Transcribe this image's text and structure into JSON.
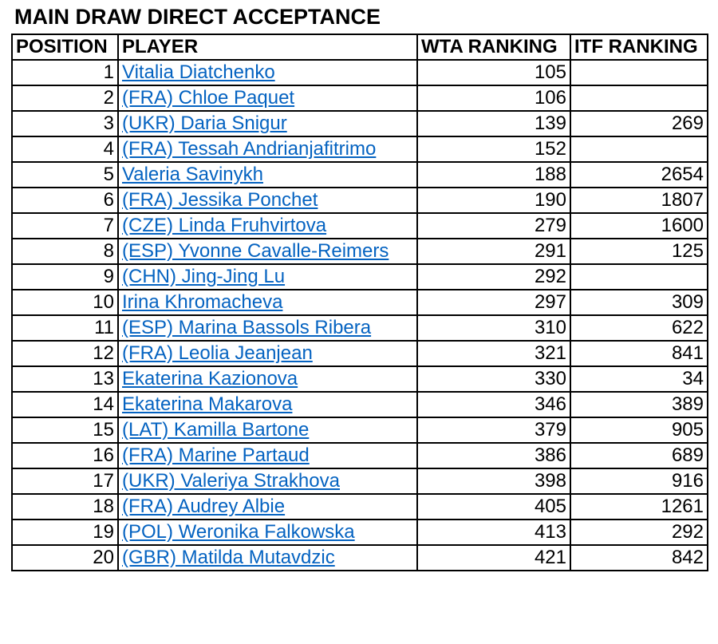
{
  "title": "MAIN DRAW DIRECT ACCEPTANCE",
  "headers": {
    "position": "POSITION",
    "player": "PLAYER",
    "wta": "WTA RANKING",
    "itf": "ITF RANKING"
  },
  "rows": [
    {
      "position": "1",
      "player": "Vitalia Diatchenko",
      "wta": "105",
      "itf": ""
    },
    {
      "position": "2",
      "player": "(FRA) Chloe Paquet",
      "wta": "106",
      "itf": ""
    },
    {
      "position": "3",
      "player": "(UKR) Daria Snigur",
      "wta": "139",
      "itf": "269"
    },
    {
      "position": "4",
      "player": "(FRA) Tessah Andrianjafitrimo",
      "wta": "152",
      "itf": ""
    },
    {
      "position": "5",
      "player": "Valeria Savinykh",
      "wta": "188",
      "itf": "2654"
    },
    {
      "position": "6",
      "player": "(FRA) Jessika Ponchet",
      "wta": "190",
      "itf": "1807"
    },
    {
      "position": "7",
      "player": "(CZE) Linda Fruhvirtova",
      "wta": "279",
      "itf": "1600"
    },
    {
      "position": "8",
      "player": "(ESP) Yvonne Cavalle-Reimers",
      "wta": "291",
      "itf": "125"
    },
    {
      "position": "9",
      "player": "(CHN) Jing-Jing Lu",
      "wta": "292",
      "itf": ""
    },
    {
      "position": "10",
      "player": "Irina Khromacheva",
      "wta": "297",
      "itf": "309"
    },
    {
      "position": "11",
      "player": "(ESP) Marina Bassols Ribera",
      "wta": "310",
      "itf": "622"
    },
    {
      "position": "12",
      "player": "(FRA) Leolia Jeanjean",
      "wta": "321",
      "itf": "841"
    },
    {
      "position": "13",
      "player": "Ekaterina Kazionova",
      "wta": "330",
      "itf": "34"
    },
    {
      "position": "14",
      "player": "Ekaterina Makarova",
      "wta": "346",
      "itf": "389"
    },
    {
      "position": "15",
      "player": "(LAT) Kamilla Bartone",
      "wta": "379",
      "itf": "905"
    },
    {
      "position": "16",
      "player": "(FRA) Marine Partaud",
      "wta": "386",
      "itf": "689"
    },
    {
      "position": "17",
      "player": "(UKR) Valeriya Strakhova",
      "wta": "398",
      "itf": "916"
    },
    {
      "position": "18",
      "player": "(FRA) Audrey Albie",
      "wta": "405",
      "itf": "1261"
    },
    {
      "position": "19",
      "player": "(POL) Weronika Falkowska ",
      "wta": "413",
      "itf": "292"
    },
    {
      "position": "20",
      "player": "(GBR) Matilda Mutavdzic",
      "wta": "421",
      "itf": "842"
    }
  ]
}
